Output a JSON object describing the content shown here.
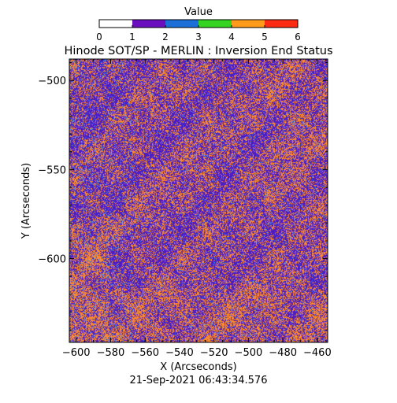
{
  "chart_data": {
    "type": "heatmap",
    "title": "Hinode SOT/SP - MERLIN : Inversion End Status",
    "xlabel": "X (Arcseconds)",
    "ylabel": "Y (Arcseconds)",
    "footer": "21-Sep-2021 06:43:34.576",
    "colorbar": {
      "label": "Value",
      "range": [
        0,
        6
      ],
      "ticks": [
        "0",
        "1",
        "2",
        "3",
        "4",
        "5",
        "6"
      ],
      "colors": [
        "#ffffff",
        "#6a0fbf",
        "#1a6fd8",
        "#34d421",
        "#ff9a1a",
        "#ff2a12"
      ]
    },
    "xlim": [
      -604,
      -454
    ],
    "ylim": [
      -647,
      -488
    ],
    "x_ticks": [
      -600,
      -580,
      -560,
      -540,
      -520,
      -500,
      -480,
      -460
    ],
    "x_tick_labels": [
      "−600",
      "−580",
      "−560",
      "−540",
      "−520",
      "−500",
      "−480",
      "−460"
    ],
    "y_ticks": [
      -500,
      -550,
      -600
    ],
    "y_tick_labels": [
      "−500",
      "−550",
      "−600"
    ],
    "pixel_colors": {
      "1": "#4b1cc8",
      "2": "#2d7fe6",
      "4": "#ff8a2a"
    },
    "value_fractions": {
      "1": 0.52,
      "2": 0.05,
      "4": 0.43
    },
    "grid": false
  }
}
